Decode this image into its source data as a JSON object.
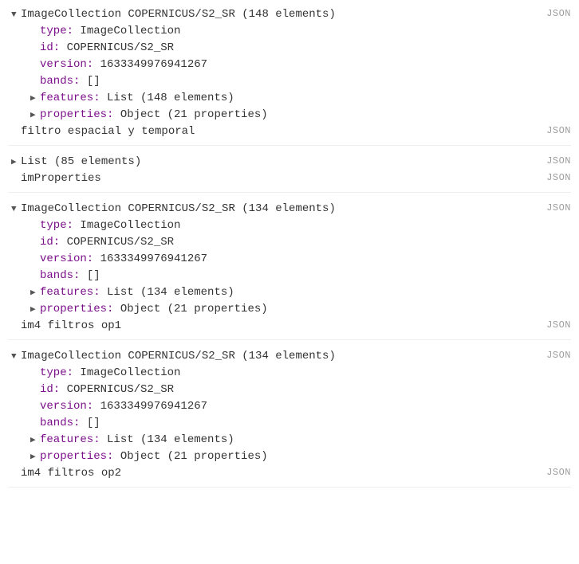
{
  "json_label": "JSON",
  "colors": {
    "key": "#7b0f8a",
    "text": "#333333",
    "json_tag": "#9e9e9e",
    "divider": "#eeeeee",
    "toggle": "#555555"
  },
  "glyphs": {
    "expanded": "▼",
    "collapsed": "▶"
  },
  "blocks": [
    {
      "header": {
        "title": "ImageCollection COPERNICUS/S2_SR (148 elements)",
        "expanded": true,
        "has_json": true
      },
      "props": [
        {
          "key": "type:",
          "value": " ImageCollection"
        },
        {
          "key": "id:",
          "value": " COPERNICUS/S2_SR"
        },
        {
          "key": "version:",
          "value": " 1633349976941267"
        },
        {
          "key": "bands:",
          "value": " []"
        }
      ],
      "children": [
        {
          "key": "features:",
          "value": " List (148 elements)",
          "expanded": false
        },
        {
          "key": "properties:",
          "value": " Object (21 properties)",
          "expanded": false
        }
      ],
      "footers": [
        {
          "text": "filtro espacial y temporal",
          "has_json": true
        }
      ]
    },
    {
      "rows": [
        {
          "toggle": "collapsed",
          "text": "List (85 elements)",
          "has_json": true
        },
        {
          "toggle": "none",
          "text": "imProperties",
          "has_json": true
        }
      ]
    },
    {
      "header": {
        "title": "ImageCollection COPERNICUS/S2_SR (134 elements)",
        "expanded": true,
        "has_json": true
      },
      "props": [
        {
          "key": "type:",
          "value": " ImageCollection"
        },
        {
          "key": "id:",
          "value": " COPERNICUS/S2_SR"
        },
        {
          "key": "version:",
          "value": " 1633349976941267"
        },
        {
          "key": "bands:",
          "value": " []"
        }
      ],
      "children": [
        {
          "key": "features:",
          "value": " List (134 elements)",
          "expanded": false
        },
        {
          "key": "properties:",
          "value": " Object (21 properties)",
          "expanded": false
        }
      ],
      "footers": [
        {
          "text": "im4 filtros op1",
          "has_json": true
        }
      ]
    },
    {
      "header": {
        "title": "ImageCollection COPERNICUS/S2_SR (134 elements)",
        "expanded": true,
        "has_json": true
      },
      "props": [
        {
          "key": "type:",
          "value": " ImageCollection"
        },
        {
          "key": "id:",
          "value": " COPERNICUS/S2_SR"
        },
        {
          "key": "version:",
          "value": " 1633349976941267"
        },
        {
          "key": "bands:",
          "value": " []"
        }
      ],
      "children": [
        {
          "key": "features:",
          "value": " List (134 elements)",
          "expanded": false
        },
        {
          "key": "properties:",
          "value": " Object (21 properties)",
          "expanded": false
        }
      ],
      "footers": [
        {
          "text": "im4 filtros op2",
          "has_json": true
        }
      ]
    }
  ]
}
